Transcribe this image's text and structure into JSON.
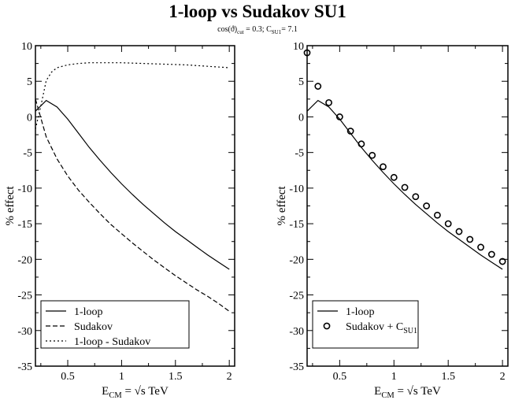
{
  "title": "1-loop vs Sudakov SU1",
  "subtitle": {
    "cos": "cos(ϑ)",
    "cos_sub": "cut",
    "cos_val": " = 0.3;  C",
    "c_sub": "SU1",
    "c_val": "= 7.1"
  },
  "chart_data": [
    {
      "type": "line",
      "xlabel": {
        "main": "E",
        "sub": "CM",
        "rest": " = √s TeV"
      },
      "ylabel": "% effect",
      "xlim": [
        0.2,
        2.05
      ],
      "ylim": [
        -35,
        10
      ],
      "xticks": [
        0.5,
        1,
        1.5,
        2
      ],
      "xtick_labels": [
        "0.5",
        "1",
        "1.5",
        "2"
      ],
      "yticks": [
        -35,
        -30,
        -25,
        -20,
        -15,
        -10,
        -5,
        0,
        5,
        10
      ],
      "ytick_labels": [
        "-35",
        "-30",
        "-25",
        "-20",
        "-15",
        "-10",
        "-5",
        "0",
        "5",
        "10"
      ],
      "grid": false,
      "legend_position": "bottom-left",
      "series": [
        {
          "name": "1-loop",
          "style": "solid",
          "x": [
            0.2,
            0.3,
            0.4,
            0.5,
            0.6,
            0.7,
            0.8,
            0.9,
            1.0,
            1.1,
            1.2,
            1.3,
            1.4,
            1.5,
            1.6,
            1.7,
            1.8,
            1.9,
            2.0
          ],
          "y": [
            0.8,
            2.3,
            1.4,
            -0.3,
            -2.3,
            -4.3,
            -6.1,
            -7.8,
            -9.4,
            -10.9,
            -12.3,
            -13.6,
            -14.9,
            -16.1,
            -17.2,
            -18.3,
            -19.4,
            -20.4,
            -21.4
          ]
        },
        {
          "name": "Sudakov",
          "style": "dashed",
          "x": [
            0.2,
            0.3,
            0.4,
            0.5,
            0.6,
            0.7,
            0.8,
            0.9,
            1.0,
            1.1,
            1.2,
            1.3,
            1.4,
            1.5,
            1.6,
            1.7,
            1.8,
            1.9,
            2.0
          ],
          "y": [
            2.5,
            -2.8,
            -5.9,
            -8.3,
            -10.3,
            -12.0,
            -13.6,
            -15.1,
            -16.4,
            -17.7,
            -18.9,
            -20.1,
            -21.2,
            -22.3,
            -23.3,
            -24.3,
            -25.2,
            -26.2,
            -27.3
          ]
        },
        {
          "name": "1-loop - Sudakov",
          "style": "dotted",
          "x": [
            0.2,
            0.25,
            0.3,
            0.35,
            0.4,
            0.5,
            0.6,
            0.7,
            0.8,
            0.9,
            1.0,
            1.2,
            1.4,
            1.6,
            1.8,
            2.0
          ],
          "y": [
            -1.7,
            1.5,
            5.1,
            6.3,
            6.9,
            7.3,
            7.5,
            7.6,
            7.6,
            7.6,
            7.6,
            7.5,
            7.4,
            7.3,
            7.1,
            6.9
          ]
        }
      ]
    },
    {
      "type": "line",
      "xlabel": {
        "main": "E",
        "sub": "CM",
        "rest": " = √s TeV"
      },
      "ylabel": "% effect",
      "xlim": [
        0.2,
        2.05
      ],
      "ylim": [
        -35,
        10
      ],
      "xticks": [
        0.5,
        1,
        1.5,
        2
      ],
      "xtick_labels": [
        "0.5",
        "1",
        "1.5",
        "2"
      ],
      "yticks": [
        -35,
        -30,
        -25,
        -20,
        -15,
        -10,
        -5,
        0,
        5,
        10
      ],
      "ytick_labels": [
        "-35",
        "-30",
        "-25",
        "-20",
        "-15",
        "-10",
        "-5",
        "0",
        "5",
        "10"
      ],
      "grid": false,
      "legend_position": "bottom-left",
      "series": [
        {
          "name": "1-loop",
          "style": "solid",
          "x": [
            0.2,
            0.3,
            0.4,
            0.5,
            0.6,
            0.7,
            0.8,
            0.9,
            1.0,
            1.1,
            1.2,
            1.3,
            1.4,
            1.5,
            1.6,
            1.7,
            1.8,
            1.9,
            2.0
          ],
          "y": [
            0.8,
            2.3,
            1.4,
            -0.3,
            -2.3,
            -4.3,
            -6.1,
            -7.8,
            -9.4,
            -10.9,
            -12.3,
            -13.6,
            -14.9,
            -16.1,
            -17.2,
            -18.3,
            -19.4,
            -20.4,
            -21.4
          ]
        },
        {
          "name": "Sudakov + C",
          "name_sub": "SU1",
          "style": "circles",
          "x": [
            0.2,
            0.3,
            0.4,
            0.5,
            0.6,
            0.7,
            0.8,
            0.9,
            1.0,
            1.1,
            1.2,
            1.3,
            1.4,
            1.5,
            1.6,
            1.7,
            1.8,
            1.9,
            2.0
          ],
          "y": [
            9.0,
            4.3,
            2.0,
            0.0,
            -2.0,
            -3.8,
            -5.4,
            -7.0,
            -8.5,
            -9.9,
            -11.2,
            -12.5,
            -13.8,
            -15.0,
            -16.1,
            -17.2,
            -18.3,
            -19.3,
            -20.3
          ]
        }
      ]
    }
  ]
}
